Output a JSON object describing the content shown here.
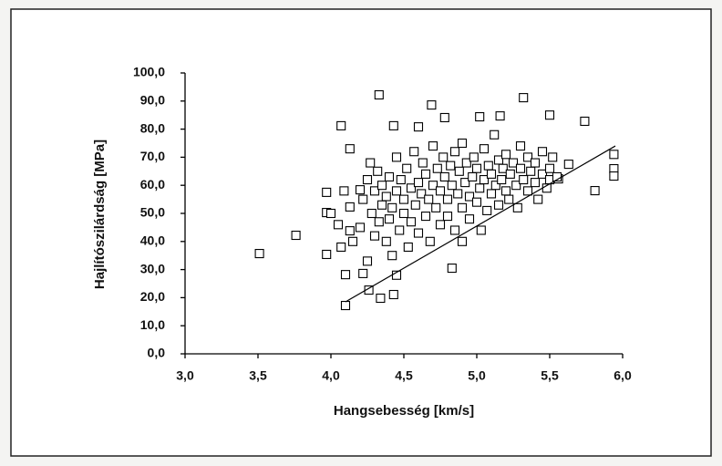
{
  "chart_data": {
    "type": "scatter",
    "xlabel": "Hangsebesség [km/s]",
    "ylabel": "Hajlítószilárdság [MPa]",
    "xlim": [
      3.0,
      6.0
    ],
    "ylim": [
      0,
      100
    ],
    "xticks": [
      {
        "value": 3.0,
        "label": "3,0"
      },
      {
        "value": 3.5,
        "label": "3,5"
      },
      {
        "value": 4.0,
        "label": "4,0"
      },
      {
        "value": 4.5,
        "label": "4,5"
      },
      {
        "value": 5.0,
        "label": "5,0"
      },
      {
        "value": 5.5,
        "label": "5,5"
      },
      {
        "value": 6.0,
        "label": "6,0"
      }
    ],
    "yticks": [
      {
        "value": 0,
        "label": "0,0"
      },
      {
        "value": 10,
        "label": "10,0"
      },
      {
        "value": 20,
        "label": "20,0"
      },
      {
        "value": 30,
        "label": "30,0"
      },
      {
        "value": 40,
        "label": "40,0"
      },
      {
        "value": 50,
        "label": "50,0"
      },
      {
        "value": 60,
        "label": "60,0"
      },
      {
        "value": 70,
        "label": "70,0"
      },
      {
        "value": 80,
        "label": "80,0"
      },
      {
        "value": 90,
        "label": "90,0"
      },
      {
        "value": 100,
        "label": "100,0"
      }
    ],
    "color": "#000000",
    "x": [
      3.51,
      3.76,
      3.97,
      3.97,
      4.0,
      3.97,
      4.07,
      4.07,
      4.1,
      4.1,
      4.13,
      4.09,
      4.13,
      4.13,
      4.22,
      4.2,
      4.26,
      4.34,
      4.33,
      4.43,
      4.43,
      4.6,
      4.69,
      4.78,
      4.83,
      5.02,
      5.16,
      5.32,
      5.5,
      5.74,
      5.81,
      5.94,
      5.94,
      5.94,
      5.63,
      5.56,
      4.2,
      4.22,
      4.25,
      4.27,
      4.28,
      4.3,
      4.3,
      4.32,
      4.33,
      4.35,
      4.35,
      4.38,
      4.38,
      4.4,
      4.4,
      4.42,
      4.42,
      4.45,
      4.45,
      4.47,
      4.48,
      4.5,
      4.5,
      4.52,
      4.53,
      4.55,
      4.55,
      4.57,
      4.58,
      4.6,
      4.6,
      4.62,
      4.63,
      4.65,
      4.65,
      4.67,
      4.68,
      4.7,
      4.7,
      4.72,
      4.73,
      4.75,
      4.75,
      4.77,
      4.78,
      4.8,
      4.8,
      4.82,
      4.83,
      4.85,
      4.85,
      4.87,
      4.88,
      4.9,
      4.9,
      4.92,
      4.93,
      4.95,
      4.95,
      4.97,
      4.98,
      5.0,
      5.0,
      5.02,
      5.03,
      5.05,
      5.05,
      5.07,
      5.08,
      5.1,
      5.1,
      5.12,
      5.13,
      5.15,
      5.15,
      5.17,
      5.18,
      5.2,
      5.2,
      5.22,
      5.23,
      5.25,
      5.27,
      5.28,
      5.3,
      5.3,
      5.32,
      5.35,
      5.35,
      5.37,
      5.4,
      5.4,
      5.42,
      5.45,
      5.45,
      5.48,
      5.5,
      5.5,
      5.52,
      5.55,
      4.9,
      4.25,
      4.15,
      4.05,
      4.45
    ],
    "values": [
      35.7,
      42.2,
      57.5,
      50.3,
      50,
      35.4,
      81.2,
      38,
      28.2,
      17.2,
      73,
      58,
      52.3,
      43.8,
      28.6,
      58.4,
      22.7,
      19.8,
      92.2,
      21.1,
      81.2,
      80.8,
      88.6,
      84.1,
      30.5,
      84.4,
      84.7,
      91.2,
      85,
      82.8,
      58.1,
      71,
      65.9,
      63.3,
      67.5,
      62.3,
      45,
      55,
      62,
      68,
      50,
      42,
      58,
      65,
      47,
      53,
      60,
      40,
      56,
      63,
      48,
      35,
      52,
      58,
      70,
      44,
      62,
      50,
      55,
      66,
      38,
      59,
      47,
      72,
      53,
      43,
      61,
      57,
      68,
      49,
      64,
      55,
      40,
      60,
      74,
      52,
      66,
      46,
      58,
      70,
      63,
      55,
      49,
      67,
      60,
      44,
      72,
      57,
      65,
      52,
      75,
      61,
      68,
      48,
      56,
      63,
      70,
      54,
      66,
      59,
      44,
      73,
      62,
      51,
      67,
      57,
      64,
      78,
      60,
      53,
      69,
      62,
      66,
      58,
      71,
      55,
      64,
      68,
      60,
      52,
      66,
      74,
      62,
      58,
      70,
      65,
      61,
      68,
      55,
      64,
      72,
      59,
      66,
      62,
      70,
      63,
      40,
      33,
      40,
      46,
      28
    ],
    "trendline": {
      "x": [
        4.1,
        5.95
      ],
      "values": [
        18.5,
        74
      ]
    }
  }
}
